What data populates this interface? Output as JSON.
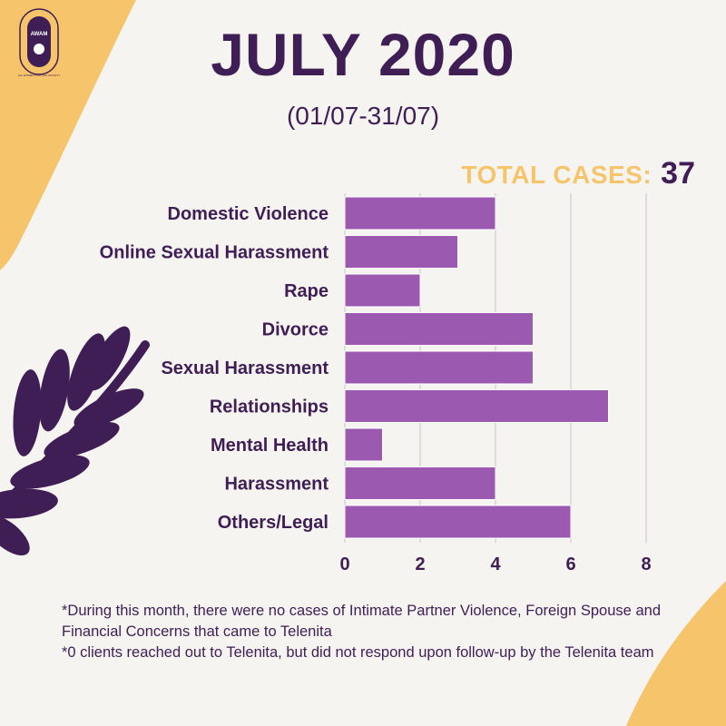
{
  "logo": {
    "text": "AWAM",
    "ring_text": "ALL WOMEN'S ACTION SOCIETY"
  },
  "title": "JULY 2020",
  "subtitle": "(01/07-31/07)",
  "total": {
    "label": "TOTAL CASES:",
    "value": "37"
  },
  "colors": {
    "bar": "#9b59b0",
    "text": "#3f1d55",
    "accent": "#f6c56b",
    "background": "#f6f4f0"
  },
  "chart_data": {
    "type": "bar",
    "orientation": "horizontal",
    "categories": [
      "Domestic Violence",
      "Online Sexual Harassment",
      "Rape",
      "Divorce",
      "Sexual Harassment",
      "Relationships",
      "Mental Health",
      "Harassment",
      "Others/Legal"
    ],
    "values": [
      4,
      3,
      2,
      5,
      5,
      7,
      1,
      4,
      6
    ],
    "xticks": [
      "0",
      "2",
      "4",
      "6",
      "8"
    ],
    "xlim": [
      0,
      8
    ],
    "grid": true
  },
  "notes": [
    "*During this month, there were no cases of Intimate Partner Violence, Foreign Spouse and Financial Concerns that came to Telenita",
    "*0 clients reached out to Telenita, but did not respond upon follow-up by the Telenita team"
  ]
}
